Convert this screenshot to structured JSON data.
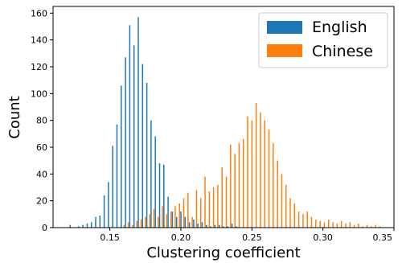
{
  "chart_data": {
    "type": "bar",
    "xlabel": "Clustering coefficient",
    "ylabel": "Count",
    "xlim": [
      0.11,
      0.35
    ],
    "ylim": [
      0,
      165
    ],
    "xticks": [
      "0.15",
      "0.20",
      "0.25",
      "0.30",
      "0.35"
    ],
    "xtick_values": [
      0.15,
      0.2,
      0.25,
      0.3,
      0.35
    ],
    "yticks": [
      "0",
      "20",
      "40",
      "60",
      "80",
      "100",
      "120",
      "140",
      "160"
    ],
    "ytick_values": [
      0,
      20,
      40,
      60,
      80,
      100,
      120,
      140,
      160
    ],
    "grid": false,
    "legend_position": "top-right",
    "series": [
      {
        "name": "English",
        "color": "#1f77b4",
        "points": [
          [
            0.122,
            2
          ],
          [
            0.128,
            1
          ],
          [
            0.131,
            2
          ],
          [
            0.134,
            3
          ],
          [
            0.137,
            4
          ],
          [
            0.14,
            8
          ],
          [
            0.143,
            9
          ],
          [
            0.146,
            24
          ],
          [
            0.149,
            34
          ],
          [
            0.152,
            61
          ],
          [
            0.155,
            77
          ],
          [
            0.158,
            106
          ],
          [
            0.161,
            127
          ],
          [
            0.164,
            151
          ],
          [
            0.167,
            136
          ],
          [
            0.17,
            157
          ],
          [
            0.173,
            122
          ],
          [
            0.176,
            108
          ],
          [
            0.179,
            80
          ],
          [
            0.182,
            68
          ],
          [
            0.185,
            48
          ],
          [
            0.188,
            47
          ],
          [
            0.191,
            23
          ],
          [
            0.194,
            12
          ],
          [
            0.197,
            8
          ],
          [
            0.2,
            12
          ],
          [
            0.203,
            8
          ],
          [
            0.206,
            4
          ],
          [
            0.209,
            6
          ],
          [
            0.212,
            3
          ],
          [
            0.215,
            4
          ],
          [
            0.218,
            2
          ],
          [
            0.221,
            1
          ],
          [
            0.224,
            2
          ],
          [
            0.227,
            2
          ],
          [
            0.23,
            1
          ],
          [
            0.233,
            1
          ],
          [
            0.236,
            3
          ],
          [
            0.239,
            1
          ]
        ]
      },
      {
        "name": "Chinese",
        "color": "#ff7f0e",
        "points": [
          [
            0.16,
            2
          ],
          [
            0.163,
            4
          ],
          [
            0.166,
            2
          ],
          [
            0.169,
            5
          ],
          [
            0.172,
            6
          ],
          [
            0.175,
            8
          ],
          [
            0.178,
            10
          ],
          [
            0.181,
            14
          ],
          [
            0.184,
            8
          ],
          [
            0.187,
            16
          ],
          [
            0.19,
            10
          ],
          [
            0.193,
            12
          ],
          [
            0.196,
            16
          ],
          [
            0.199,
            18
          ],
          [
            0.202,
            22
          ],
          [
            0.205,
            26
          ],
          [
            0.208,
            8
          ],
          [
            0.211,
            28
          ],
          [
            0.214,
            22
          ],
          [
            0.217,
            38
          ],
          [
            0.22,
            27
          ],
          [
            0.223,
            30
          ],
          [
            0.226,
            32
          ],
          [
            0.229,
            45
          ],
          [
            0.232,
            38
          ],
          [
            0.235,
            62
          ],
          [
            0.238,
            55
          ],
          [
            0.241,
            63
          ],
          [
            0.244,
            66
          ],
          [
            0.247,
            83
          ],
          [
            0.25,
            80
          ],
          [
            0.253,
            93
          ],
          [
            0.256,
            86
          ],
          [
            0.259,
            80
          ],
          [
            0.262,
            73
          ],
          [
            0.265,
            63
          ],
          [
            0.268,
            50
          ],
          [
            0.271,
            40
          ],
          [
            0.274,
            32
          ],
          [
            0.277,
            22
          ],
          [
            0.28,
            18
          ],
          [
            0.283,
            12
          ],
          [
            0.286,
            10
          ],
          [
            0.289,
            12
          ],
          [
            0.292,
            8
          ],
          [
            0.295,
            6
          ],
          [
            0.298,
            5
          ],
          [
            0.301,
            4
          ],
          [
            0.304,
            6
          ],
          [
            0.307,
            4
          ],
          [
            0.31,
            3
          ],
          [
            0.313,
            5
          ],
          [
            0.316,
            3
          ],
          [
            0.319,
            4
          ],
          [
            0.322,
            2
          ],
          [
            0.325,
            3
          ],
          [
            0.328,
            1
          ],
          [
            0.331,
            2
          ],
          [
            0.334,
            1
          ],
          [
            0.337,
            2
          ],
          [
            0.34,
            1
          ]
        ]
      }
    ]
  }
}
